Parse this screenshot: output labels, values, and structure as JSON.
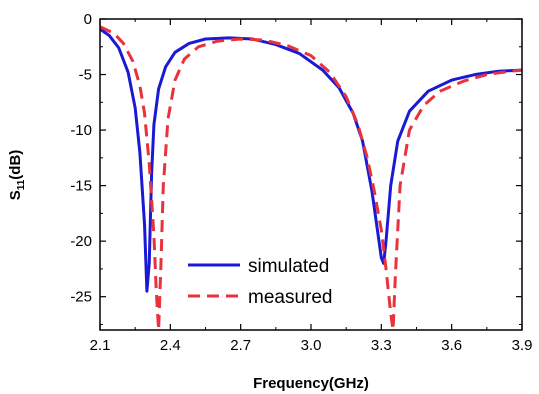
{
  "chart_data": {
    "type": "line",
    "xlabel": "Frequency(GHz)",
    "ylabel_main": "S",
    "ylabel_sub": "11",
    "ylabel_unit": "(dB)",
    "xlim": [
      2.1,
      3.9
    ],
    "ylim": [
      -28,
      0
    ],
    "x_ticks": [
      2.1,
      2.4,
      2.7,
      3.0,
      3.3,
      3.6,
      3.9
    ],
    "x_tick_labels": [
      "2.1",
      "2.4",
      "2.7",
      "3.0",
      "3.3",
      "3.6",
      "3.9"
    ],
    "y_ticks": [
      0,
      -5,
      -10,
      -15,
      -20,
      -25
    ],
    "y_tick_labels": [
      "0",
      "-5",
      "-10",
      "-15",
      "-20",
      "-25"
    ],
    "grid": false,
    "legend_position": "bottom-center",
    "series": [
      {
        "name": "simulated",
        "color": "#1a1ad4",
        "style": "solid",
        "x": [
          2.1,
          2.14,
          2.18,
          2.22,
          2.25,
          2.27,
          2.29,
          2.3,
          2.31,
          2.32,
          2.33,
          2.35,
          2.38,
          2.42,
          2.48,
          2.55,
          2.65,
          2.75,
          2.85,
          2.95,
          3.05,
          3.12,
          3.18,
          3.22,
          3.26,
          3.28,
          3.3,
          3.31,
          3.32,
          3.34,
          3.37,
          3.42,
          3.5,
          3.6,
          3.7,
          3.8,
          3.9
        ],
        "values": [
          -0.9,
          -1.5,
          -2.6,
          -4.8,
          -8.0,
          -12.0,
          -18.5,
          -24.5,
          -22.0,
          -14.0,
          -9.5,
          -6.3,
          -4.3,
          -3.0,
          -2.2,
          -1.8,
          -1.7,
          -1.8,
          -2.3,
          -3.1,
          -4.6,
          -6.2,
          -8.5,
          -11.0,
          -15.5,
          -18.5,
          -21.5,
          -22.0,
          -20.0,
          -15.0,
          -11.0,
          -8.3,
          -6.5,
          -5.5,
          -5.0,
          -4.7,
          -4.6
        ]
      },
      {
        "name": "measured",
        "color": "#e8323c",
        "style": "dashed",
        "x": [
          2.1,
          2.16,
          2.2,
          2.24,
          2.27,
          2.29,
          2.31,
          2.33,
          2.34,
          2.35,
          2.36,
          2.37,
          2.39,
          2.42,
          2.46,
          2.52,
          2.6,
          2.7,
          2.8,
          2.9,
          3.0,
          3.08,
          3.15,
          3.2,
          3.24,
          3.27,
          3.3,
          3.32,
          3.34,
          3.35,
          3.36,
          3.38,
          3.42,
          3.48,
          3.55,
          3.65,
          3.75,
          3.85,
          3.9
        ],
        "values": [
          -0.7,
          -1.3,
          -2.2,
          -3.8,
          -6.0,
          -8.5,
          -13.0,
          -19.5,
          -24.5,
          -28.0,
          -22.0,
          -15.0,
          -9.0,
          -5.5,
          -3.6,
          -2.5,
          -2.0,
          -1.8,
          -1.9,
          -2.4,
          -3.3,
          -4.8,
          -7.0,
          -9.5,
          -12.5,
          -15.5,
          -19.0,
          -22.5,
          -26.5,
          -28.0,
          -23.0,
          -15.0,
          -10.0,
          -7.8,
          -6.5,
          -5.6,
          -5.0,
          -4.7,
          -4.6
        ]
      }
    ]
  }
}
